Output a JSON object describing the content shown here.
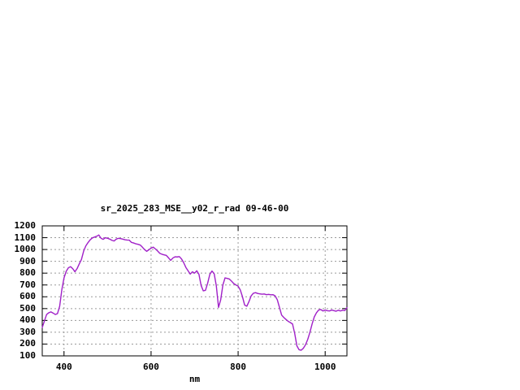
{
  "title": "sr_2025_283_MSE__y02_r_rad 09-46-00",
  "colors": {
    "background": "#ffffff",
    "text": "#000000",
    "axis": "#000000",
    "grid": "#9a9a9a",
    "line": "#a020c8"
  },
  "chart_data": {
    "type": "line",
    "title": "sr_2025_283_MSE__y02_r_rad 09-46-00",
    "xlabel": "nm",
    "ylabel": "",
    "xlim": [
      350,
      1050
    ],
    "ylim": [
      100,
      1200
    ],
    "xticks": [
      400,
      600,
      800,
      1000
    ],
    "yticks": [
      100,
      200,
      300,
      400,
      500,
      600,
      700,
      800,
      900,
      1000,
      1100,
      1200
    ],
    "grid": true,
    "grid_style": "dotted",
    "legend_position": "none",
    "series": [
      {
        "name": "sr_2025_283_MSE__y02_r_rad",
        "color": "#a020c8",
        "x": [
          350,
          355,
          360,
          365,
          370,
          375,
          380,
          385,
          390,
          395,
          400,
          405,
          410,
          415,
          420,
          425,
          430,
          435,
          440,
          445,
          450,
          455,
          460,
          465,
          470,
          475,
          480,
          485,
          490,
          495,
          500,
          505,
          510,
          515,
          520,
          525,
          530,
          535,
          540,
          545,
          550,
          555,
          560,
          565,
          570,
          575,
          580,
          585,
          590,
          595,
          600,
          605,
          610,
          615,
          620,
          625,
          630,
          635,
          640,
          645,
          650,
          655,
          660,
          665,
          670,
          675,
          680,
          685,
          690,
          695,
          700,
          705,
          710,
          715,
          720,
          725,
          730,
          735,
          740,
          745,
          750,
          755,
          760,
          765,
          770,
          775,
          780,
          785,
          790,
          795,
          800,
          805,
          810,
          815,
          820,
          825,
          830,
          835,
          840,
          845,
          850,
          855,
          860,
          865,
          870,
          875,
          880,
          885,
          890,
          895,
          900,
          905,
          910,
          915,
          920,
          925,
          930,
          935,
          940,
          945,
          950,
          955,
          960,
          965,
          970,
          975,
          980,
          985,
          990,
          995,
          1000,
          1005,
          1010,
          1015,
          1020,
          1025,
          1030,
          1035,
          1040,
          1045,
          1050
        ],
        "y": [
          340,
          395,
          450,
          465,
          472,
          462,
          450,
          458,
          520,
          660,
          760,
          815,
          845,
          855,
          838,
          812,
          838,
          878,
          915,
          985,
          1030,
          1058,
          1082,
          1098,
          1105,
          1112,
          1123,
          1095,
          1086,
          1100,
          1095,
          1088,
          1078,
          1072,
          1088,
          1095,
          1092,
          1088,
          1083,
          1080,
          1079,
          1060,
          1055,
          1048,
          1044,
          1038,
          1020,
          1000,
          985,
          998,
          1012,
          1020,
          1005,
          988,
          968,
          960,
          955,
          950,
          930,
          908,
          928,
          938,
          937,
          940,
          920,
          888,
          848,
          820,
          792,
          812,
          800,
          820,
          790,
          695,
          650,
          655,
          715,
          790,
          818,
          795,
          690,
          510,
          575,
          700,
          760,
          755,
          750,
          732,
          712,
          700,
          690,
          658,
          600,
          530,
          520,
          560,
          608,
          630,
          635,
          628,
          625,
          622,
          624,
          618,
          620,
          617,
          618,
          608,
          575,
          510,
          445,
          425,
          408,
          392,
          382,
          370,
          290,
          185,
          152,
          148,
          165,
          195,
          240,
          300,
          370,
          430,
          465,
          488,
          492,
          480,
          488,
          482,
          480,
          488,
          483,
          478,
          486,
          480,
          486,
          484,
          508
        ]
      }
    ]
  }
}
